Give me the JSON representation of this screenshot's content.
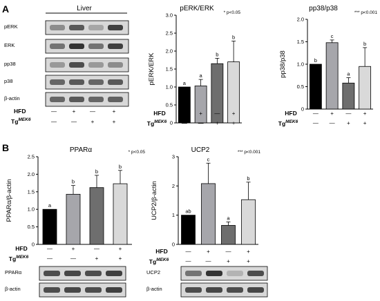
{
  "figure": {
    "panel_a": {
      "letter": "A",
      "blot_title": "Liver",
      "blot_rows": [
        "pERK",
        "ERK",
        "pp38",
        "p38",
        "β-actin"
      ],
      "group_labels": {
        "hfd": "HFD",
        "tg": "Tg",
        "tg_sup": "MEK6"
      },
      "hfd_signs": [
        "—",
        "+",
        "—",
        "+"
      ],
      "tg_signs": [
        "—",
        "—",
        "+",
        "+"
      ]
    },
    "panel_b": {
      "letter": "B",
      "blot_rows_left": [
        "PPARα",
        "β-actin"
      ],
      "blot_rows_right": [
        "UCP2",
        "β-actin"
      ],
      "group_labels": {
        "hfd": "HFD",
        "tg": "Tg",
        "tg_sup": "MEK6"
      },
      "hfd_signs": [
        "—",
        "+",
        "—",
        "+"
      ],
      "tg_signs": [
        "—",
        "—",
        "+",
        "+"
      ]
    }
  },
  "chart_data": [
    {
      "id": "perk",
      "type": "bar",
      "title": "pERK/ERK",
      "ylabel": "pERK/ERK",
      "significance": "* p<0.05",
      "ylim": [
        0,
        3.0
      ],
      "yticks": [
        0,
        0.5,
        1.0,
        1.5,
        2.0,
        2.5,
        3.0
      ],
      "ytick_labels": [
        "0",
        "0.5",
        "1.0",
        "1.5",
        "2.0",
        "2.5",
        "3.0"
      ],
      "categories": [
        "—/—",
        "+/—",
        "—/+",
        "+/+"
      ],
      "values": [
        1.0,
        1.03,
        1.65,
        1.7
      ],
      "errors": [
        0,
        0.18,
        0.15,
        0.58
      ],
      "letters": [
        "a",
        "a",
        "b",
        "b"
      ],
      "colors": [
        "#000000",
        "#a6a6ab",
        "#6e6e6e",
        "#d9d9d9"
      ]
    },
    {
      "id": "pp38",
      "type": "bar",
      "title": "pp38/p38",
      "ylabel": "pp38/p38",
      "significance": "*** p<0.001",
      "ylim": [
        0,
        2.0
      ],
      "yticks": [
        0,
        0.5,
        1.0,
        1.5,
        2.0
      ],
      "ytick_labels": [
        "0",
        "0.5",
        "1.0",
        "1.5",
        "2.0"
      ],
      "categories": [
        "—/—",
        "+/—",
        "—/+",
        "+/+"
      ],
      "values": [
        1.0,
        1.48,
        0.58,
        0.95
      ],
      "errors": [
        0,
        0.06,
        0.12,
        0.42
      ],
      "letters": [
        "b",
        "c",
        "a",
        "b"
      ],
      "colors": [
        "#000000",
        "#a6a6ab",
        "#6e6e6e",
        "#d9d9d9"
      ]
    },
    {
      "id": "ppara",
      "type": "bar",
      "title": "PPARα",
      "ylabel": "PPARα/β-actin",
      "significance": "* p<0.05",
      "ylim": [
        0,
        2.5
      ],
      "yticks": [
        0,
        0.5,
        1.0,
        1.5,
        2.0,
        2.5
      ],
      "ytick_labels": [
        "0",
        "0.5",
        "1.0",
        "1.5",
        "2.0",
        "2.5"
      ],
      "categories": [
        "—/—",
        "+/—",
        "—/+",
        "+/+"
      ],
      "values": [
        1.0,
        1.43,
        1.62,
        1.73
      ],
      "errors": [
        0,
        0.25,
        0.35,
        0.38
      ],
      "letters": [
        "a",
        "b",
        "b",
        "b"
      ],
      "colors": [
        "#000000",
        "#a6a6ab",
        "#6e6e6e",
        "#d9d9d9"
      ]
    },
    {
      "id": "ucp2",
      "type": "bar",
      "title": "UCP2",
      "ylabel": "UCP2/β-actin",
      "significance": "*** p<0.001",
      "ylim": [
        0,
        3
      ],
      "yticks": [
        0,
        1,
        2,
        3
      ],
      "ytick_labels": [
        "0",
        "1",
        "2",
        "3"
      ],
      "categories": [
        "—/—",
        "+/—",
        "—/+",
        "+/+"
      ],
      "values": [
        1.0,
        2.08,
        0.65,
        1.53
      ],
      "errors": [
        0,
        0.7,
        0.12,
        0.6
      ],
      "letters": [
        "ab",
        "c",
        "a",
        "b"
      ],
      "colors": [
        "#000000",
        "#a6a6ab",
        "#6e6e6e",
        "#d9d9d9"
      ]
    }
  ]
}
